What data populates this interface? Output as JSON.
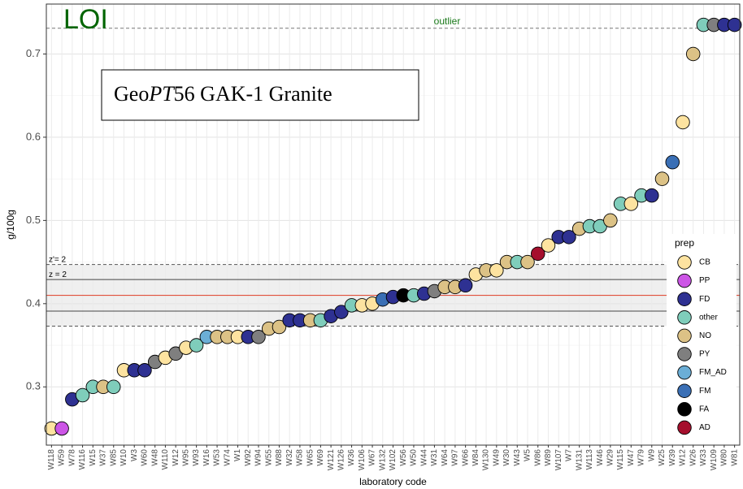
{
  "chart_data": {
    "type": "scatter",
    "annotation": "LOI",
    "title": [
      "Geo",
      "PT",
      "56 GAK-1 Granite"
    ],
    "ylabel": "g/100g",
    "xlabel": "laboratory code",
    "categories": [
      "W118",
      "W59",
      "W78",
      "W116",
      "W15",
      "W37",
      "W85",
      "W10",
      "W3",
      "W60",
      "W48",
      "W110",
      "W12",
      "W95",
      "W93",
      "W16",
      "W53",
      "W74",
      "W1",
      "W92",
      "W94",
      "W55",
      "W88",
      "W32",
      "W58",
      "W65",
      "W69",
      "W121",
      "W126",
      "W36",
      "W106",
      "W67",
      "W132",
      "W102",
      "W56",
      "W50",
      "W44",
      "W31",
      "W64",
      "W97",
      "W66",
      "W84",
      "W130",
      "W49",
      "W30",
      "W43",
      "W5",
      "W86",
      "W89",
      "W107",
      "W7",
      "W131",
      "W113",
      "W46",
      "W29",
      "W115",
      "W47",
      "W79",
      "W9",
      "W25",
      "W39",
      "W12",
      "W26",
      "W33",
      "W109",
      "W80",
      "W81"
    ],
    "values": [
      0.25,
      0.25,
      0.285,
      0.29,
      0.3,
      0.3,
      0.3,
      0.32,
      0.32,
      0.32,
      0.33,
      0.335,
      0.34,
      0.347,
      0.35,
      0.36,
      0.36,
      0.36,
      0.36,
      0.36,
      0.36,
      0.37,
      0.372,
      0.38,
      0.38,
      0.38,
      0.38,
      0.385,
      0.39,
      0.398,
      0.398,
      0.4,
      0.405,
      0.408,
      0.41,
      0.41,
      0.412,
      0.415,
      0.42,
      0.42,
      0.422,
      0.435,
      0.44,
      0.44,
      0.45,
      0.45,
      0.45,
      0.46,
      0.47,
      0.48,
      0.48,
      0.49,
      0.493,
      0.493,
      0.5,
      0.52,
      0.52,
      0.53,
      0.53,
      0.55,
      0.57,
      0.618,
      0.7,
      0.735,
      0.735,
      0.735,
      0.735
    ],
    "groups": [
      "CB",
      "PP",
      "FD",
      "other",
      "other",
      "NO",
      "other",
      "CB",
      "FD",
      "FD",
      "PY",
      "CB",
      "PY",
      "CB",
      "other",
      "FM_AD",
      "NO",
      "NO",
      "CB",
      "FD",
      "PY",
      "NO",
      "NO",
      "FD",
      "FD",
      "NO",
      "other",
      "FD",
      "FD",
      "other",
      "CB",
      "CB",
      "FM",
      "FD",
      "FA",
      "other",
      "FD",
      "PY",
      "NO",
      "NO",
      "FD",
      "CB",
      "NO",
      "CB",
      "NO",
      "other",
      "NO",
      "AD",
      "CB",
      "FD",
      "FD",
      "NO",
      "other",
      "other",
      "NO",
      "other",
      "CB",
      "other",
      "FD",
      "NO",
      "FM",
      "CB",
      "NO",
      "other",
      "PY",
      "FD",
      "FD"
    ],
    "legend": {
      "title": "prep",
      "items": [
        {
          "name": "CB",
          "color": "#fde3a0"
        },
        {
          "name": "PP",
          "color": "#cc55e6"
        },
        {
          "name": "FD",
          "color": "#2e3192"
        },
        {
          "name": "other",
          "color": "#7fcdbb"
        },
        {
          "name": "NO",
          "color": "#dcc286"
        },
        {
          "name": "PY",
          "color": "#7f7f7f"
        },
        {
          "name": "FM_AD",
          "color": "#6baed6"
        },
        {
          "name": "FM",
          "color": "#3a6fb5"
        },
        {
          "name": "FA",
          "color": "#000000"
        },
        {
          "name": "AD",
          "color": "#a50f2d"
        }
      ]
    },
    "ylim": [
      0.23,
      0.76
    ],
    "yticks": [
      0.3,
      0.4,
      0.5,
      0.6,
      0.7
    ],
    "grid": true,
    "assigned_value": 0.41,
    "z_limits": [
      0.391,
      0.429
    ],
    "z_label": "z = 2",
    "zprime_limits": [
      0.373,
      0.447
    ],
    "zprime_label": "z'= 2",
    "outlier_line": 0.731,
    "outlier_label": "outlier"
  }
}
